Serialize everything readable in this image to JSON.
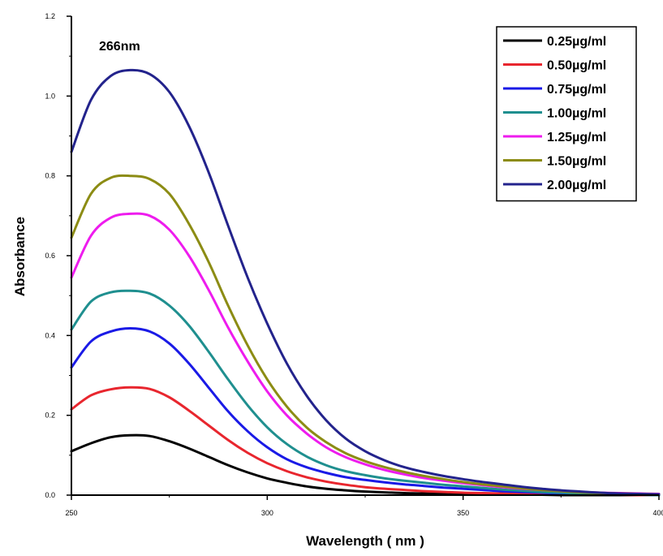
{
  "chart_data": {
    "type": "line",
    "title": "",
    "annotation": "266nm",
    "xlabel": "Wavelength ( nm )",
    "ylabel": "Absorbance",
    "xlim": [
      250,
      400
    ],
    "ylim": [
      0,
      1.2
    ],
    "xticks": [
      250,
      300,
      350,
      400
    ],
    "yticks": [
      0.0,
      0.2,
      0.4,
      0.6,
      0.8,
      1.0,
      1.2
    ],
    "xtick_labels": [
      "250",
      "300",
      "350",
      "400"
    ],
    "ytick_labels": [
      "0.0",
      "0.2",
      "0.4",
      "0.6",
      "0.8",
      "1.0",
      "1.2"
    ],
    "grid": false,
    "legend_position": "top-right",
    "x": [
      250,
      255,
      260,
      265,
      270,
      275,
      280,
      285,
      290,
      295,
      300,
      305,
      310,
      315,
      320,
      325,
      330,
      335,
      340,
      345,
      350,
      355,
      360,
      365,
      370,
      375,
      380,
      385,
      390,
      395,
      400
    ],
    "series": [
      {
        "name": "0.25µg/ml",
        "color": "#000000",
        "values": [
          0.11,
          0.13,
          0.145,
          0.15,
          0.148,
          0.135,
          0.117,
          0.096,
          0.075,
          0.057,
          0.042,
          0.031,
          0.022,
          0.016,
          0.012,
          0.009,
          0.007,
          0.005,
          0.004,
          0.003,
          0.002,
          0.002,
          0.001,
          0.001,
          0.001,
          0.0,
          0.0,
          0.0,
          0.0,
          0.0,
          0.0
        ]
      },
      {
        "name": "0.50µg/ml",
        "color": "#e8262e",
        "values": [
          0.215,
          0.25,
          0.265,
          0.27,
          0.266,
          0.245,
          0.212,
          0.175,
          0.138,
          0.106,
          0.08,
          0.06,
          0.045,
          0.034,
          0.026,
          0.02,
          0.016,
          0.013,
          0.01,
          0.008,
          0.006,
          0.005,
          0.004,
          0.003,
          0.002,
          0.002,
          0.001,
          0.001,
          0.001,
          0.0,
          0.0
        ]
      },
      {
        "name": "0.75µg/ml",
        "color": "#1a1ae6",
        "values": [
          0.32,
          0.385,
          0.41,
          0.418,
          0.41,
          0.38,
          0.33,
          0.27,
          0.21,
          0.16,
          0.12,
          0.09,
          0.07,
          0.056,
          0.045,
          0.038,
          0.032,
          0.027,
          0.023,
          0.019,
          0.016,
          0.013,
          0.01,
          0.008,
          0.006,
          0.004,
          0.003,
          0.002,
          0.001,
          0.001,
          0.0
        ]
      },
      {
        "name": "1.00µg/ml",
        "color": "#1f8f8f",
        "values": [
          0.415,
          0.485,
          0.508,
          0.512,
          0.505,
          0.475,
          0.425,
          0.36,
          0.29,
          0.225,
          0.17,
          0.128,
          0.097,
          0.075,
          0.06,
          0.05,
          0.042,
          0.036,
          0.031,
          0.026,
          0.022,
          0.018,
          0.014,
          0.011,
          0.008,
          0.006,
          0.004,
          0.003,
          0.002,
          0.001,
          0.0
        ]
      },
      {
        "name": "1.25µg/ml",
        "color": "#ee1cee",
        "values": [
          0.545,
          0.65,
          0.695,
          0.705,
          0.7,
          0.665,
          0.6,
          0.515,
          0.42,
          0.335,
          0.26,
          0.2,
          0.155,
          0.12,
          0.095,
          0.077,
          0.063,
          0.052,
          0.043,
          0.036,
          0.03,
          0.025,
          0.02,
          0.016,
          0.013,
          0.01,
          0.008,
          0.006,
          0.005,
          0.004,
          0.003
        ]
      },
      {
        "name": "1.50µg/ml",
        "color": "#8c8c14",
        "values": [
          0.645,
          0.755,
          0.795,
          0.8,
          0.792,
          0.755,
          0.68,
          0.585,
          0.475,
          0.375,
          0.29,
          0.222,
          0.17,
          0.133,
          0.105,
          0.085,
          0.07,
          0.058,
          0.048,
          0.04,
          0.033,
          0.027,
          0.022,
          0.017,
          0.013,
          0.01,
          0.007,
          0.005,
          0.004,
          0.003,
          0.002
        ]
      },
      {
        "name": "2.00µg/ml",
        "color": "#23238c",
        "values": [
          0.86,
          0.99,
          1.05,
          1.065,
          1.055,
          1.01,
          0.925,
          0.81,
          0.675,
          0.545,
          0.43,
          0.33,
          0.25,
          0.188,
          0.142,
          0.11,
          0.087,
          0.07,
          0.058,
          0.048,
          0.04,
          0.033,
          0.027,
          0.021,
          0.016,
          0.012,
          0.009,
          0.006,
          0.004,
          0.003,
          0.002
        ]
      }
    ]
  }
}
